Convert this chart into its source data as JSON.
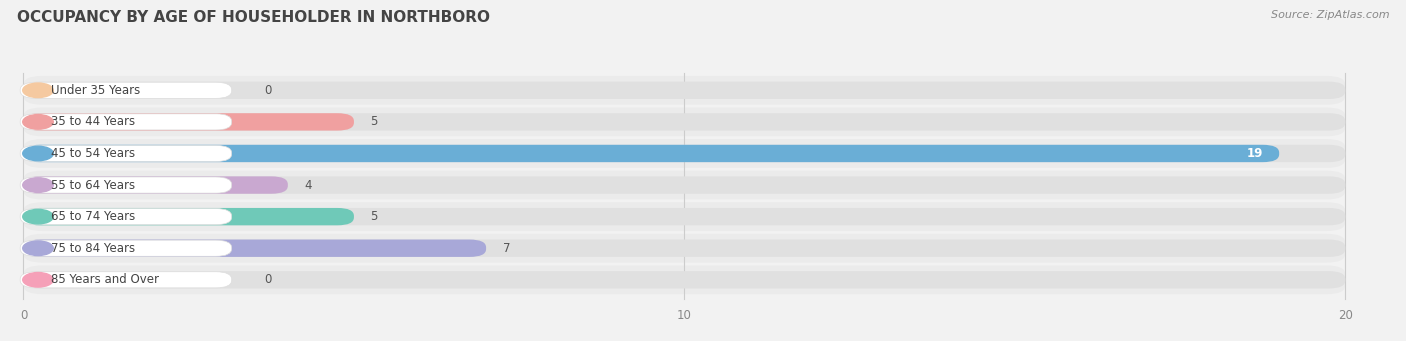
{
  "title": "OCCUPANCY BY AGE OF HOUSEHOLDER IN NORTHBORO",
  "source": "Source: ZipAtlas.com",
  "categories": [
    "Under 35 Years",
    "35 to 44 Years",
    "45 to 54 Years",
    "55 to 64 Years",
    "65 to 74 Years",
    "75 to 84 Years",
    "85 Years and Over"
  ],
  "values": [
    0,
    5,
    19,
    4,
    5,
    7,
    0
  ],
  "bar_colors": [
    "#f5c9a0",
    "#f0a0a0",
    "#6aaed6",
    "#c9a8d0",
    "#6fc9b8",
    "#a8a8d8",
    "#f5a0b8"
  ],
  "xlim": [
    0,
    20
  ],
  "xticks": [
    0,
    10,
    20
  ],
  "background_color": "#f0f0f0",
  "bar_bg_color": "#e0e0e0",
  "row_bg_color": "#f8f8f8",
  "title_fontsize": 11,
  "label_fontsize": 8.5,
  "value_fontsize": 8.5,
  "source_fontsize": 8
}
